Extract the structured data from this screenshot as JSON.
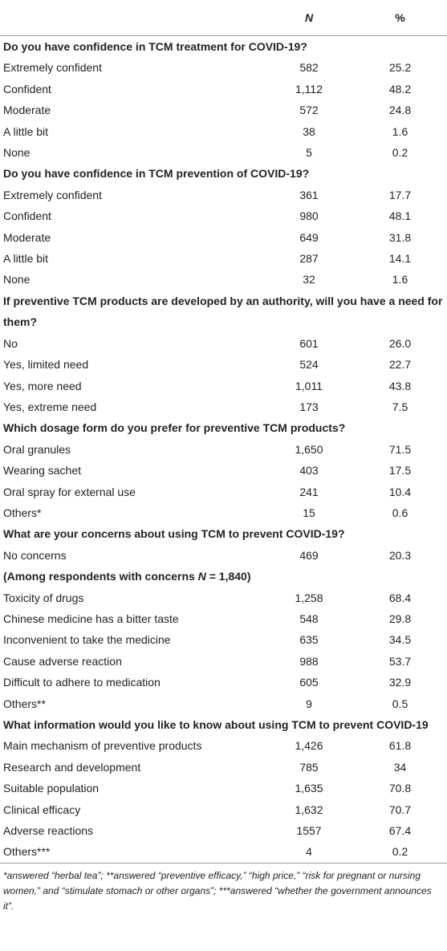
{
  "header": {
    "columns": [
      "N",
      "%"
    ]
  },
  "sections": [
    {
      "title": "Do you have confidence in TCM treatment for COVID-19?",
      "rows": [
        [
          "Extremely confident",
          "582",
          "25.2"
        ],
        [
          "Confident",
          "1,112",
          "48.2"
        ],
        [
          "Moderate",
          "572",
          "24.8"
        ],
        [
          "A little bit",
          "38",
          "1.6"
        ],
        [
          "None",
          "5",
          "0.2"
        ]
      ]
    },
    {
      "title": "Do you have confidence in TCM prevention of COVID-19?",
      "rows": [
        [
          "Extremely confident",
          "361",
          "17.7"
        ],
        [
          "Confident",
          "980",
          "48.1"
        ],
        [
          "Moderate",
          "649",
          "31.8"
        ],
        [
          "A little bit",
          "287",
          "14.1"
        ],
        [
          "None",
          "32",
          "1.6"
        ]
      ]
    },
    {
      "title": "If preventive TCM products are developed by an authority, will you have a need for them?",
      "rows": [
        [
          "No",
          "601",
          "26.0"
        ],
        [
          "Yes, limited need",
          "524",
          "22.7"
        ],
        [
          "Yes, more need",
          "1,011",
          "43.8"
        ],
        [
          "Yes, extreme need",
          "173",
          "7.5"
        ]
      ]
    },
    {
      "title": "Which dosage form do you prefer for preventive TCM products?",
      "rows": [
        [
          "Oral granules",
          "1,650",
          "71.5"
        ],
        [
          "Wearing sachet",
          "403",
          "17.5"
        ],
        [
          "Oral spray for external use",
          "241",
          "10.4"
        ],
        [
          "Others*",
          "15",
          "0.6"
        ]
      ]
    },
    {
      "title": "What are your concerns about using TCM to prevent COVID-19?",
      "rows": [
        [
          "No concerns",
          "469",
          "20.3"
        ]
      ],
      "subheading": {
        "before": "(Among respondents with concerns ",
        "italic": "N",
        "after": " = 1,840)"
      },
      "subrows": [
        [
          "Toxicity of drugs",
          "1,258",
          "68.4"
        ],
        [
          "Chinese medicine has a bitter taste",
          "548",
          "29.8"
        ],
        [
          "Inconvenient to take the medicine",
          "635",
          "34.5"
        ],
        [
          "Cause adverse reaction",
          "988",
          "53.7"
        ],
        [
          "Difficult to adhere to medication",
          "605",
          "32.9"
        ],
        [
          "Others**",
          "9",
          "0.5"
        ]
      ]
    },
    {
      "title": "What information would you like to know about using TCM to prevent COVID-19",
      "rows": [
        [
          "Main mechanism of preventive products",
          "1,426",
          "61.8"
        ],
        [
          "Research and development",
          "785",
          "34"
        ],
        [
          "Suitable population",
          "1,635",
          "70.8"
        ],
        [
          "Clinical efficacy",
          "1,632",
          "70.7"
        ],
        [
          "Adverse reactions",
          "1557",
          "67.4"
        ],
        [
          "Others***",
          "4",
          "0.2"
        ]
      ]
    }
  ],
  "footnote": "*answered “herbal tea”; **answered “preventive efficacy,” “high price,” “risk for pregnant or nursing women,” and “stimulate stomach or other organs”; ***answered “whether the government announces it”."
}
